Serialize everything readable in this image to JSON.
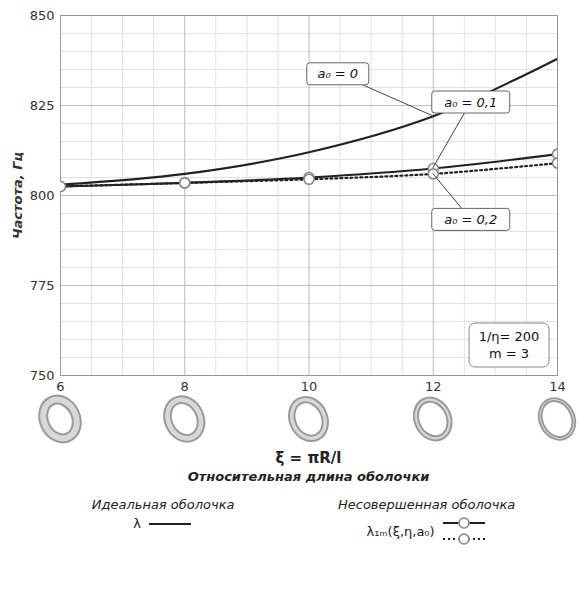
{
  "chart_data": {
    "type": "line",
    "ylabel": "Частота, Гц",
    "xlabel_lines": [
      "ξ = πR/l",
      "Относительная длина оболочки"
    ],
    "x": [
      6,
      8,
      10,
      12,
      14
    ],
    "xlim": [
      6,
      14
    ],
    "xticks": [
      6,
      8,
      10,
      12,
      14
    ],
    "ylim": [
      750,
      850
    ],
    "yticks": [
      750,
      775,
      800,
      825,
      850
    ],
    "grid": true,
    "series": [
      {
        "name": "a₀ = 0",
        "color": "#222222",
        "line_style": "solid",
        "marker": "none",
        "values": [
          803,
          806,
          812,
          822,
          838
        ]
      },
      {
        "name": "a₀ = 0,1",
        "color": "#222222",
        "line_style": "solid",
        "marker": "circle",
        "values": [
          802.5,
          803.5,
          805,
          807.5,
          811.5
        ]
      },
      {
        "name": "a₀ = 0,2",
        "color": "#222222",
        "line_style": "dotted",
        "marker": "circle",
        "values": [
          802.5,
          803.5,
          804.5,
          806,
          809
        ]
      }
    ],
    "annotations": [
      "1/η= 200",
      "m = 3"
    ],
    "legend": "bottom",
    "legend_groups": [
      {
        "title": "Идеальная оболочка",
        "label": "λ",
        "series": [
          "a₀ = 0"
        ]
      },
      {
        "title": "Несовершенная оболочка",
        "label": "λ₁ₘ(ξ,η,a₀)",
        "series": [
          "a₀ = 0,1",
          "a₀ = 0,2"
        ]
      }
    ]
  }
}
